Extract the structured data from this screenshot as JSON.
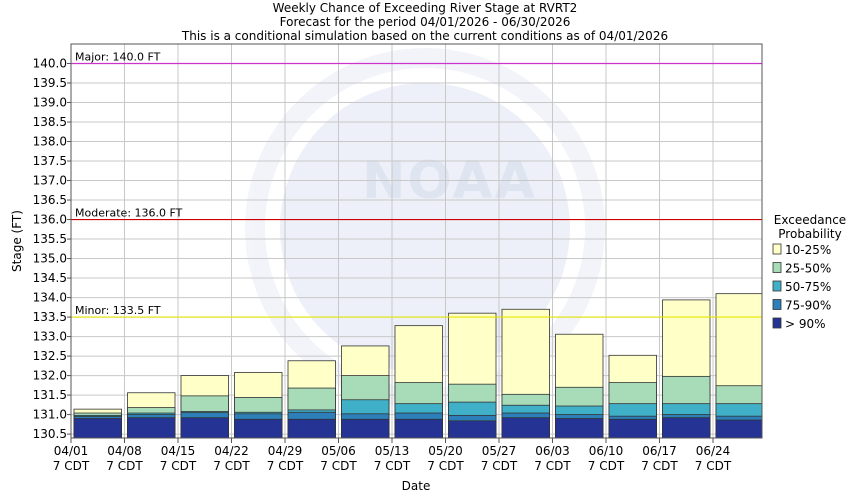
{
  "chart_data": {
    "type": "bar",
    "title_lines": [
      "Weekly Chance of Exceeding River Stage at RVRT2",
      "Forecast for the period 04/01/2026 - 06/30/2026",
      "This is a conditional simulation based on the current conditions as of 04/01/2026"
    ],
    "xlabel": "Date",
    "ylabel": "Stage (FT)",
    "ylim": [
      130.4,
      140.5
    ],
    "yticks": [
      "130.5",
      "131.0",
      "131.5",
      "132.0",
      "132.5",
      "133.0",
      "133.5",
      "134.0",
      "134.5",
      "135.0",
      "135.5",
      "136.0",
      "136.5",
      "137.0",
      "137.5",
      "138.0",
      "138.5",
      "139.0",
      "139.5",
      "140.0"
    ],
    "categories": [
      "04/01",
      "04/08",
      "04/15",
      "04/22",
      "04/29",
      "05/06",
      "05/13",
      "05/20",
      "05/27",
      "06/03",
      "06/10",
      "06/17",
      "06/24"
    ],
    "category_sublabel": "7 CDT",
    "thresholds": [
      {
        "label": "Major: 140.0 FT",
        "value": 140.0,
        "color": "#cc33cc"
      },
      {
        "label": "Moderate: 136.0 FT",
        "value": 136.0,
        "color": "#cc0000"
      },
      {
        "label": "Minor: 133.5 FT",
        "value": 133.5,
        "color": "#e6e600"
      }
    ],
    "legend": {
      "title_lines": [
        "Exceedance",
        "Probability"
      ],
      "position": "right",
      "entries": [
        {
          "label": "10-25%",
          "color": "#ffffc8"
        },
        {
          "label": "25-50%",
          "color": "#a8dcb8"
        },
        {
          "label": "50-75%",
          "color": "#40b0c8"
        },
        {
          "label": "75-90%",
          "color": "#2c7fb8"
        },
        {
          "label": "> 90%",
          "color": "#253494"
        }
      ]
    },
    "series": [
      {
        "name": "> 90%",
        "values": [
          130.9,
          130.92,
          130.92,
          130.88,
          130.88,
          130.88,
          130.88,
          130.84,
          130.92,
          130.9,
          130.88,
          130.92,
          130.86
        ]
      },
      {
        "name": "75-90%",
        "values": [
          130.95,
          131.0,
          131.05,
          131.02,
          131.06,
          131.02,
          131.04,
          130.98,
          131.04,
          131.0,
          130.96,
          131.0,
          130.96
        ]
      },
      {
        "name": "50-75%",
        "values": [
          130.98,
          131.04,
          131.08,
          131.06,
          131.12,
          131.38,
          131.28,
          131.32,
          131.24,
          131.22,
          131.28,
          131.28,
          131.28
        ]
      },
      {
        "name": "25-50%",
        "values": [
          131.04,
          131.18,
          131.48,
          131.44,
          131.68,
          132.0,
          131.82,
          131.78,
          131.52,
          131.7,
          131.82,
          131.98,
          131.74
        ]
      },
      {
        "name": "10-25%",
        "values": [
          131.14,
          131.56,
          132.0,
          132.08,
          132.38,
          132.76,
          133.28,
          133.6,
          133.7,
          133.06,
          132.52,
          133.94,
          134.1
        ]
      }
    ]
  }
}
